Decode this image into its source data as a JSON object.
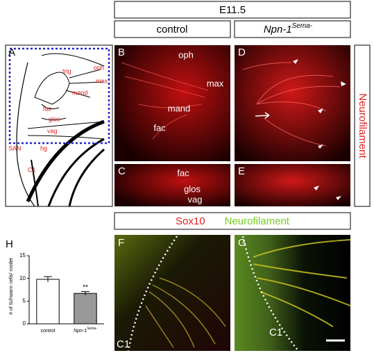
{
  "header": {
    "stage": "E11.5",
    "control": "control",
    "mutant": "Npn-1",
    "mutant_sup": "Sema-"
  },
  "side_label": "Neurofilament",
  "stain_header": {
    "red": "Sox10",
    "green": "Neurofilament"
  },
  "panels": {
    "A": "A",
    "B": "B",
    "C": "C",
    "D": "D",
    "E": "E",
    "F": "F",
    "G": "G"
  },
  "schematic_labels": {
    "trig": "trig",
    "oph": "oph",
    "max": "max",
    "mand": "mand",
    "fac": "fac",
    "glos": "glos",
    "vag": "vag",
    "san": "SAN",
    "hg": "hg",
    "c1": "C1"
  },
  "panel_b_labels": {
    "oph": "oph",
    "max": "max",
    "mand": "mand",
    "fac": "fac"
  },
  "panel_c_labels": {
    "fac": "fac",
    "glos": "glos",
    "vag": "vag"
  },
  "panel_f_label": "C1",
  "panel_g_label": "C1",
  "chart_data": {
    "type": "bar",
    "panel_label": "H",
    "ylabel": "# of Schwann cells/ rootlet",
    "categories": [
      "control",
      "Npn-1"
    ],
    "category_superscripts": [
      null,
      "Sema-"
    ],
    "values": [
      9.8,
      6.7
    ],
    "errors": [
      0.6,
      0.4
    ],
    "colors": [
      "#ffffff",
      "#999999"
    ],
    "significance": [
      null,
      "**"
    ],
    "ylim": [
      0,
      15
    ],
    "yticks": [
      0,
      5,
      10,
      15
    ]
  }
}
